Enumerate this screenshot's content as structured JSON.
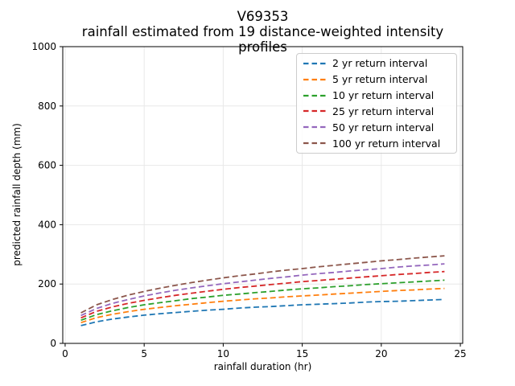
{
  "chart_data": {
    "type": "line",
    "title": "V69353",
    "subtitle": "rainfall estimated from 19 distance-weighted intensity profiles",
    "xlabel": "rainfall duration (hr)",
    "ylabel": "predicted rainfall depth (mm)",
    "xlim": [
      -0.15,
      25.15
    ],
    "ylim": [
      0,
      1000
    ],
    "x_ticks": [
      0,
      5,
      10,
      15,
      20,
      25
    ],
    "y_ticks": [
      0,
      200,
      400,
      600,
      800,
      1000
    ],
    "grid": true,
    "grid_color": "#e8e8e8",
    "spine_color": "#000000",
    "line_style": "dashed",
    "legend_position": "upper right",
    "x": [
      1,
      2,
      3,
      4,
      5,
      6,
      7,
      8,
      9,
      10,
      11,
      12,
      13,
      14,
      15,
      16,
      17,
      18,
      19,
      20,
      21,
      22,
      23,
      24
    ],
    "series": [
      {
        "name": "2 yr return interval",
        "color": "#1f77b4",
        "values": [
          60,
          73,
          82,
          89,
          95,
          100,
          104,
          108,
          112,
          115,
          119,
          122,
          124,
          127,
          130,
          132,
          134,
          136,
          139,
          141,
          142,
          144,
          146,
          148
        ]
      },
      {
        "name": "5 yr return interval",
        "color": "#ff7f0e",
        "values": [
          70,
          87,
          98,
          107,
          115,
          121,
          127,
          132,
          137,
          142,
          146,
          150,
          153,
          157,
          160,
          163,
          166,
          169,
          172,
          175,
          178,
          180,
          183,
          185
        ]
      },
      {
        "name": "10 yr return interval",
        "color": "#2ca02c",
        "values": [
          78,
          97,
          110,
          121,
          130,
          137,
          144,
          151,
          156,
          162,
          166,
          171,
          175,
          180,
          184,
          187,
          191,
          194,
          198,
          201,
          204,
          207,
          210,
          213
        ]
      },
      {
        "name": "25 yr return interval",
        "color": "#d62728",
        "values": [
          86,
          108,
          123,
          135,
          145,
          154,
          162,
          169,
          176,
          182,
          188,
          193,
          198,
          203,
          208,
          212,
          216,
          220,
          224,
          228,
          232,
          235,
          239,
          242
        ]
      },
      {
        "name": "50 yr return interval",
        "color": "#9467bd",
        "values": [
          94,
          118,
          135,
          148,
          160,
          170,
          179,
          187,
          194,
          201,
          207,
          213,
          219,
          224,
          230,
          235,
          239,
          244,
          248,
          252,
          257,
          261,
          264,
          268
        ]
      },
      {
        "name": "100 yr return interval",
        "color": "#8c564b",
        "values": [
          103,
          130,
          148,
          163,
          175,
          186,
          196,
          205,
          213,
          221,
          228,
          234,
          241,
          247,
          252,
          258,
          263,
          268,
          273,
          278,
          282,
          287,
          291,
          295
        ]
      }
    ]
  }
}
